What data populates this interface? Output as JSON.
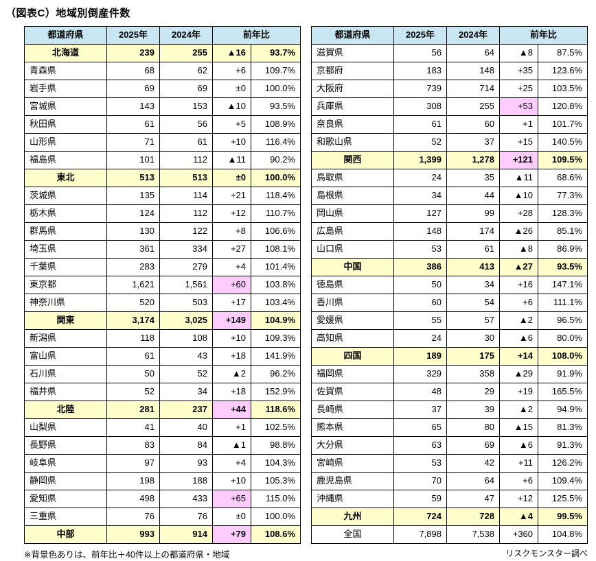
{
  "title": "（図表C）地域別倒産件数",
  "notes": {
    "legend": "※背景色ありは、前年比＋40件以上の都道府県・地域",
    "source": "リスクモンスター調べ"
  },
  "colors": {
    "header_bg": "#c8e7f3",
    "region_row_bg": "#ffffcc",
    "highlight_bg": "#ffccff",
    "border": "#000000",
    "background": "#ffffff"
  },
  "chart_data": {
    "type": "table",
    "title": "地域別倒産件数",
    "columns": [
      "都道府県",
      "2025年",
      "2024年",
      "前年比"
    ],
    "yoy_spans_two_columns": true,
    "tables": [
      {
        "rows": [
          {
            "name": "北海道",
            "kind": "region",
            "y2025": "239",
            "y2024": "255",
            "diff": "▲16",
            "ratio": "93.7%",
            "highlight": false
          },
          {
            "name": "青森県",
            "kind": "pref",
            "y2025": "68",
            "y2024": "62",
            "diff": "+6",
            "ratio": "109.7%",
            "highlight": false
          },
          {
            "name": "岩手県",
            "kind": "pref",
            "y2025": "69",
            "y2024": "69",
            "diff": "±0",
            "ratio": "100.0%",
            "highlight": false
          },
          {
            "name": "宮城県",
            "kind": "pref",
            "y2025": "143",
            "y2024": "153",
            "diff": "▲10",
            "ratio": "93.5%",
            "highlight": false
          },
          {
            "name": "秋田県",
            "kind": "pref",
            "y2025": "61",
            "y2024": "56",
            "diff": "+5",
            "ratio": "108.9%",
            "highlight": false
          },
          {
            "name": "山形県",
            "kind": "pref",
            "y2025": "71",
            "y2024": "61",
            "diff": "+10",
            "ratio": "116.4%",
            "highlight": false
          },
          {
            "name": "福島県",
            "kind": "pref",
            "y2025": "101",
            "y2024": "112",
            "diff": "▲11",
            "ratio": "90.2%",
            "highlight": false
          },
          {
            "name": "東北",
            "kind": "region",
            "y2025": "513",
            "y2024": "513",
            "diff": "±0",
            "ratio": "100.0%",
            "highlight": false
          },
          {
            "name": "茨城県",
            "kind": "pref",
            "y2025": "135",
            "y2024": "114",
            "diff": "+21",
            "ratio": "118.4%",
            "highlight": false
          },
          {
            "name": "栃木県",
            "kind": "pref",
            "y2025": "124",
            "y2024": "112",
            "diff": "+12",
            "ratio": "110.7%",
            "highlight": false
          },
          {
            "name": "群馬県",
            "kind": "pref",
            "y2025": "130",
            "y2024": "122",
            "diff": "+8",
            "ratio": "106.6%",
            "highlight": false
          },
          {
            "name": "埼玉県",
            "kind": "pref",
            "y2025": "361",
            "y2024": "334",
            "diff": "+27",
            "ratio": "108.1%",
            "highlight": false
          },
          {
            "name": "千葉県",
            "kind": "pref",
            "y2025": "283",
            "y2024": "279",
            "diff": "+4",
            "ratio": "101.4%",
            "highlight": false
          },
          {
            "name": "東京都",
            "kind": "pref",
            "y2025": "1,621",
            "y2024": "1,561",
            "diff": "+60",
            "ratio": "103.8%",
            "highlight": true
          },
          {
            "name": "神奈川県",
            "kind": "pref",
            "y2025": "520",
            "y2024": "503",
            "diff": "+17",
            "ratio": "103.4%",
            "highlight": false
          },
          {
            "name": "関東",
            "kind": "region",
            "y2025": "3,174",
            "y2024": "3,025",
            "diff": "+149",
            "ratio": "104.9%",
            "highlight": true
          },
          {
            "name": "新潟県",
            "kind": "pref",
            "y2025": "118",
            "y2024": "108",
            "diff": "+10",
            "ratio": "109.3%",
            "highlight": false
          },
          {
            "name": "富山県",
            "kind": "pref",
            "y2025": "61",
            "y2024": "43",
            "diff": "+18",
            "ratio": "141.9%",
            "highlight": false
          },
          {
            "name": "石川県",
            "kind": "pref",
            "y2025": "50",
            "y2024": "52",
            "diff": "▲2",
            "ratio": "96.2%",
            "highlight": false
          },
          {
            "name": "福井県",
            "kind": "pref",
            "y2025": "52",
            "y2024": "34",
            "diff": "+18",
            "ratio": "152.9%",
            "highlight": false
          },
          {
            "name": "北陸",
            "kind": "region",
            "y2025": "281",
            "y2024": "237",
            "diff": "+44",
            "ratio": "118.6%",
            "highlight": true
          },
          {
            "name": "山梨県",
            "kind": "pref",
            "y2025": "41",
            "y2024": "40",
            "diff": "+1",
            "ratio": "102.5%",
            "highlight": false
          },
          {
            "name": "長野県",
            "kind": "pref",
            "y2025": "83",
            "y2024": "84",
            "diff": "▲1",
            "ratio": "98.8%",
            "highlight": false
          },
          {
            "name": "岐阜県",
            "kind": "pref",
            "y2025": "97",
            "y2024": "93",
            "diff": "+4",
            "ratio": "104.3%",
            "highlight": false
          },
          {
            "name": "静岡県",
            "kind": "pref",
            "y2025": "198",
            "y2024": "188",
            "diff": "+10",
            "ratio": "105.3%",
            "highlight": false
          },
          {
            "name": "愛知県",
            "kind": "pref",
            "y2025": "498",
            "y2024": "433",
            "diff": "+65",
            "ratio": "115.0%",
            "highlight": true
          },
          {
            "name": "三重県",
            "kind": "pref",
            "y2025": "76",
            "y2024": "76",
            "diff": "±0",
            "ratio": "100.0%",
            "highlight": false
          },
          {
            "name": "中部",
            "kind": "region",
            "y2025": "993",
            "y2024": "914",
            "diff": "+79",
            "ratio": "108.6%",
            "highlight": true
          }
        ]
      },
      {
        "rows": [
          {
            "name": "滋賀県",
            "kind": "pref",
            "y2025": "56",
            "y2024": "64",
            "diff": "▲8",
            "ratio": "87.5%",
            "highlight": false
          },
          {
            "name": "京都府",
            "kind": "pref",
            "y2025": "183",
            "y2024": "148",
            "diff": "+35",
            "ratio": "123.6%",
            "highlight": false
          },
          {
            "name": "大阪府",
            "kind": "pref",
            "y2025": "739",
            "y2024": "714",
            "diff": "+25",
            "ratio": "103.5%",
            "highlight": false
          },
          {
            "name": "兵庫県",
            "kind": "pref",
            "y2025": "308",
            "y2024": "255",
            "diff": "+53",
            "ratio": "120.8%",
            "highlight": true
          },
          {
            "name": "奈良県",
            "kind": "pref",
            "y2025": "61",
            "y2024": "60",
            "diff": "+1",
            "ratio": "101.7%",
            "highlight": false
          },
          {
            "name": "和歌山県",
            "kind": "pref",
            "y2025": "52",
            "y2024": "37",
            "diff": "+15",
            "ratio": "140.5%",
            "highlight": false
          },
          {
            "name": "関西",
            "kind": "region",
            "y2025": "1,399",
            "y2024": "1,278",
            "diff": "+121",
            "ratio": "109.5%",
            "highlight": true
          },
          {
            "name": "鳥取県",
            "kind": "pref",
            "y2025": "24",
            "y2024": "35",
            "diff": "▲11",
            "ratio": "68.6%",
            "highlight": false
          },
          {
            "name": "島根県",
            "kind": "pref",
            "y2025": "34",
            "y2024": "44",
            "diff": "▲10",
            "ratio": "77.3%",
            "highlight": false
          },
          {
            "name": "岡山県",
            "kind": "pref",
            "y2025": "127",
            "y2024": "99",
            "diff": "+28",
            "ratio": "128.3%",
            "highlight": false
          },
          {
            "name": "広島県",
            "kind": "pref",
            "y2025": "148",
            "y2024": "174",
            "diff": "▲26",
            "ratio": "85.1%",
            "highlight": false
          },
          {
            "name": "山口県",
            "kind": "pref",
            "y2025": "53",
            "y2024": "61",
            "diff": "▲8",
            "ratio": "86.9%",
            "highlight": false
          },
          {
            "name": "中国",
            "kind": "region",
            "y2025": "386",
            "y2024": "413",
            "diff": "▲27",
            "ratio": "93.5%",
            "highlight": false
          },
          {
            "name": "徳島県",
            "kind": "pref",
            "y2025": "50",
            "y2024": "34",
            "diff": "+16",
            "ratio": "147.1%",
            "highlight": false
          },
          {
            "name": "香川県",
            "kind": "pref",
            "y2025": "60",
            "y2024": "54",
            "diff": "+6",
            "ratio": "111.1%",
            "highlight": false
          },
          {
            "name": "愛媛県",
            "kind": "pref",
            "y2025": "55",
            "y2024": "57",
            "diff": "▲2",
            "ratio": "96.5%",
            "highlight": false
          },
          {
            "name": "高知県",
            "kind": "pref",
            "y2025": "24",
            "y2024": "30",
            "diff": "▲6",
            "ratio": "80.0%",
            "highlight": false
          },
          {
            "name": "四国",
            "kind": "region",
            "y2025": "189",
            "y2024": "175",
            "diff": "+14",
            "ratio": "108.0%",
            "highlight": false
          },
          {
            "name": "福岡県",
            "kind": "pref",
            "y2025": "329",
            "y2024": "358",
            "diff": "▲29",
            "ratio": "91.9%",
            "highlight": false
          },
          {
            "name": "佐賀県",
            "kind": "pref",
            "y2025": "48",
            "y2024": "29",
            "diff": "+19",
            "ratio": "165.5%",
            "highlight": false
          },
          {
            "name": "長崎県",
            "kind": "pref",
            "y2025": "37",
            "y2024": "39",
            "diff": "▲2",
            "ratio": "94.9%",
            "highlight": false
          },
          {
            "name": "熊本県",
            "kind": "pref",
            "y2025": "65",
            "y2024": "80",
            "diff": "▲15",
            "ratio": "81.3%",
            "highlight": false
          },
          {
            "name": "大分県",
            "kind": "pref",
            "y2025": "63",
            "y2024": "69",
            "diff": "▲6",
            "ratio": "91.3%",
            "highlight": false
          },
          {
            "name": "宮崎県",
            "kind": "pref",
            "y2025": "53",
            "y2024": "42",
            "diff": "+11",
            "ratio": "126.2%",
            "highlight": false
          },
          {
            "name": "鹿児島県",
            "kind": "pref",
            "y2025": "70",
            "y2024": "64",
            "diff": "+6",
            "ratio": "109.4%",
            "highlight": false
          },
          {
            "name": "沖縄県",
            "kind": "pref",
            "y2025": "59",
            "y2024": "47",
            "diff": "+12",
            "ratio": "125.5%",
            "highlight": false
          },
          {
            "name": "九州",
            "kind": "region",
            "y2025": "724",
            "y2024": "728",
            "diff": "▲4",
            "ratio": "99.5%",
            "highlight": false
          },
          {
            "name": "全国",
            "kind": "total",
            "y2025": "7,898",
            "y2024": "7,538",
            "diff": "+360",
            "ratio": "104.8%",
            "highlight": false
          }
        ]
      }
    ]
  }
}
